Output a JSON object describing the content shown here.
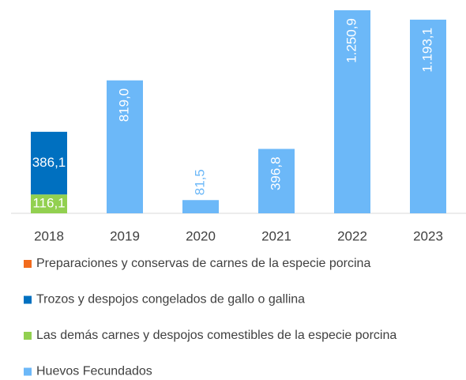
{
  "chart_data": {
    "type": "bar",
    "stacked": true,
    "categories": [
      "2018",
      "2019",
      "2020",
      "2021",
      "2022",
      "2023"
    ],
    "series": [
      {
        "name": "Preparaciones y conservas de carnes de la especie porcina",
        "color": "#f26b1d",
        "values": [
          null,
          null,
          null,
          null,
          null,
          null
        ]
      },
      {
        "name": "Trozos y despojos congelados de gallo o gallina",
        "color": "#0070c0",
        "values": [
          386.1,
          null,
          null,
          null,
          null,
          null
        ],
        "value_labels": [
          "386,1",
          null,
          null,
          null,
          null,
          null
        ]
      },
      {
        "name": "Las demás carnes y despojos comestibles de la especie porcina",
        "color": "#92d050",
        "values": [
          116.1,
          null,
          null,
          null,
          null,
          null
        ],
        "value_labels": [
          "116,1",
          null,
          null,
          null,
          null,
          null
        ]
      },
      {
        "name": "Huevos Fecundados",
        "color": "#6cb8f8",
        "values": [
          null,
          819.0,
          81.5,
          396.8,
          1250.9,
          1193.1
        ],
        "value_labels": [
          null,
          "819,0",
          "81,5",
          "396,8",
          "1.250,9",
          "1.193,1"
        ]
      }
    ]
  }
}
